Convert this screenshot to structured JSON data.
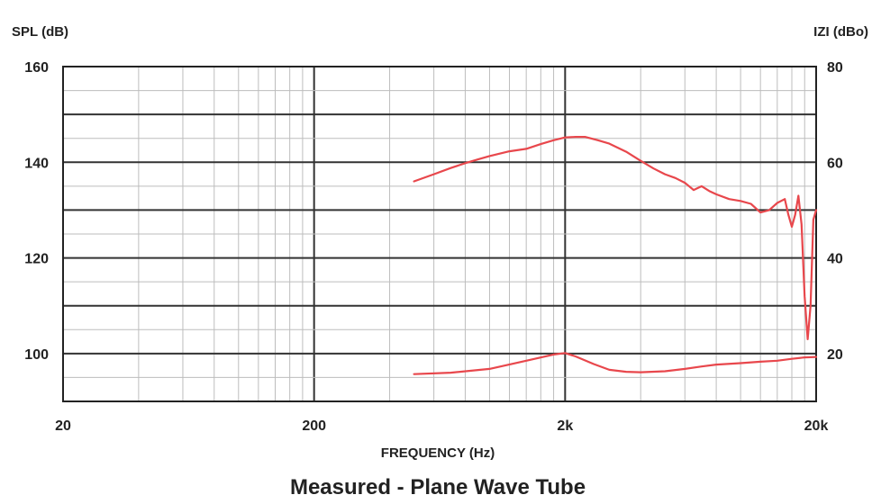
{
  "chart_data": {
    "type": "line",
    "title": "Measured - Plane Wave Tube",
    "xlabel": "FREQUENCY (Hz)",
    "ylabel_left": "SPL (dB)",
    "ylabel_right": "IZI (dBo)",
    "x_scale": "log",
    "xlim": [
      20,
      20000
    ],
    "ylim_left": [
      90,
      160
    ],
    "ylim_right": [
      10,
      80
    ],
    "x_ticks": [
      20,
      200,
      2000,
      20000
    ],
    "x_tick_labels": [
      "20",
      "200",
      "2k",
      "20k"
    ],
    "y_left_ticks": [
      100,
      120,
      140,
      160
    ],
    "y_left_tick_labels": [
      "100",
      "120",
      "140",
      "160"
    ],
    "y_right_ticks": [
      20,
      40,
      60,
      80
    ],
    "y_right_tick_labels": [
      "20",
      "40",
      "60",
      "80"
    ],
    "grid": true,
    "line_color": "#e8474c",
    "series": [
      {
        "axis": "left",
        "x": [
          500,
          600,
          700,
          800,
          900,
          1000,
          1200,
          1400,
          1600,
          1800,
          2000,
          2200,
          2400,
          2700,
          3000,
          3500,
          4000,
          4500,
          5000,
          5500,
          6000,
          6500,
          7000,
          7500,
          8000,
          9000,
          10000,
          11000,
          12000,
          13000,
          14000,
          15000,
          15500,
          16000,
          16500,
          17000,
          17500,
          18000,
          18500,
          19000,
          19500,
          20000
        ],
        "y": [
          136,
          137.5,
          138.8,
          139.8,
          140.6,
          141.3,
          142.3,
          142.8,
          143.8,
          144.6,
          145.2,
          145.3,
          145.3,
          144.6,
          143.9,
          142.2,
          140.3,
          138.7,
          137.5,
          136.7,
          135.7,
          134.2,
          135.0,
          134.0,
          133.3,
          132.3,
          131.9,
          131.3,
          129.5,
          130.0,
          131.5,
          132.3,
          129.0,
          126.5,
          129.0,
          133.0,
          127.0,
          112.0,
          103.0,
          110.0,
          128.0,
          130.0
        ]
      },
      {
        "axis": "left",
        "x": [
          500,
          700,
          1000,
          1400,
          1800,
          2000,
          2200,
          2600,
          3000,
          3500,
          4000,
          5000,
          6000,
          7000,
          8000,
          10000,
          12000,
          14000,
          16000,
          18000,
          20000
        ],
        "y": [
          95.7,
          96.0,
          96.8,
          98.5,
          99.8,
          100.1,
          99.4,
          97.8,
          96.6,
          96.2,
          96.1,
          96.3,
          96.8,
          97.3,
          97.7,
          98.0,
          98.3,
          98.5,
          98.9,
          99.2,
          99.3
        ]
      }
    ]
  }
}
